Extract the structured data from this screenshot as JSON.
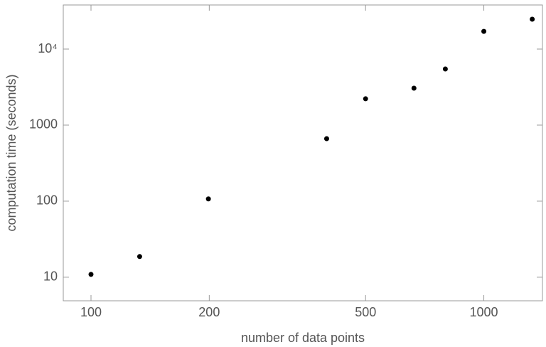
{
  "chart_data": {
    "type": "scatter",
    "xlabel": "number of data points",
    "ylabel": "computation time (seconds)",
    "x": [
      100,
      133,
      199,
      398,
      500,
      664,
      798,
      1000,
      1328
    ],
    "values": [
      10.9,
      18.7,
      107,
      664,
      2220,
      3060,
      5470,
      17100,
      24700
    ],
    "color": "#000000",
    "xlog": true,
    "ylog": true,
    "xlim": [
      85,
      1410
    ],
    "ylim": [
      4.9,
      38000
    ],
    "xticks": [
      100,
      200,
      500,
      1000
    ],
    "yticks": [
      10,
      100,
      1000,
      {
        "value": 10000,
        "label": "10⁴"
      }
    ]
  }
}
